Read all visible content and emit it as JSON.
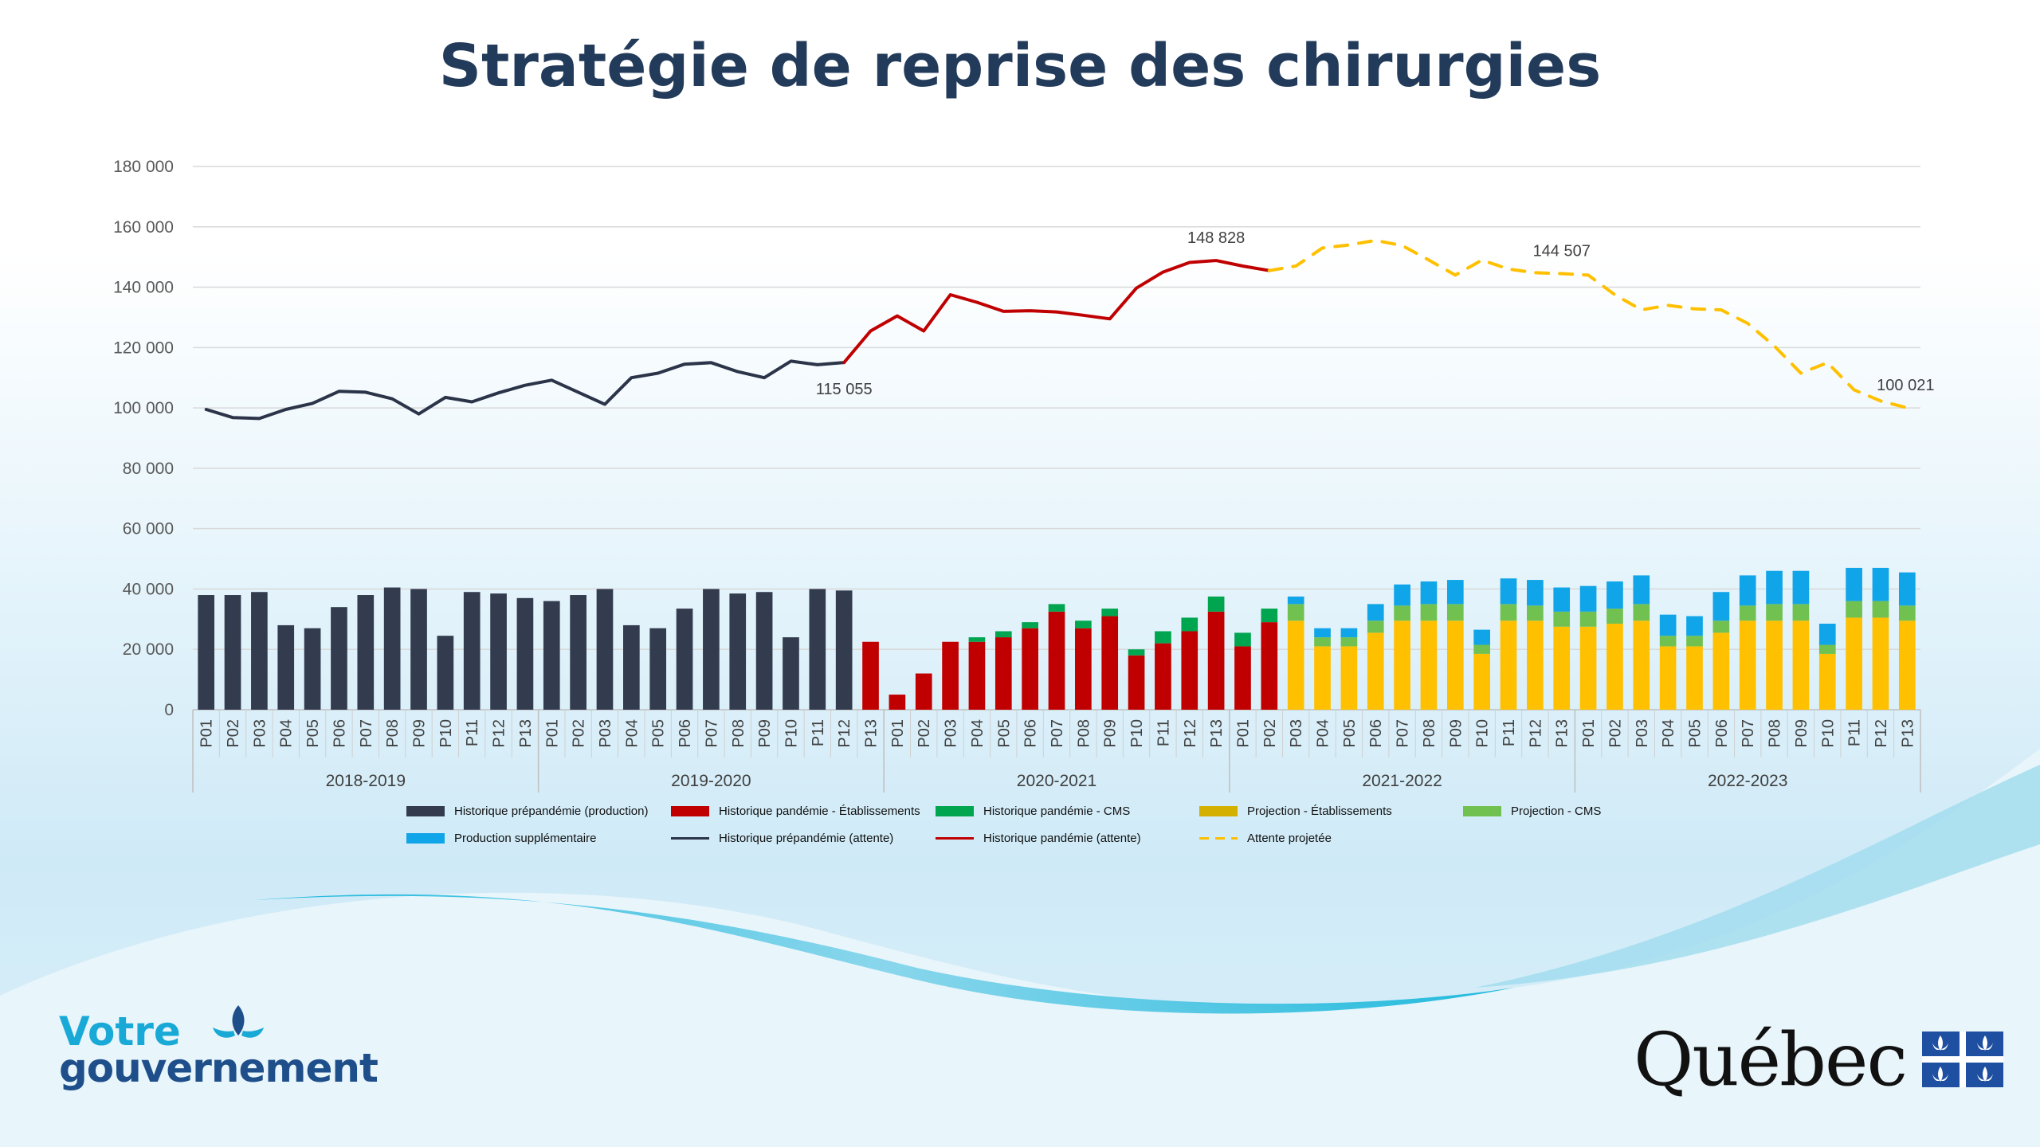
{
  "title": "Stratégie de reprise des chirurgies",
  "brand": {
    "left_line1": "Votre",
    "left_line2": "gouvernement",
    "right_word": "Québec"
  },
  "colors": {
    "pre_bar": "#323c4e",
    "pand_bar": "#c00000",
    "pand_cms": "#00a550",
    "proj_etab": "#ffc000",
    "proj_cms": "#70c150",
    "prod_supp": "#10a4e8",
    "pre_line": "#2b3448",
    "pand_line": "#c00000",
    "proj_line": "#ffc000",
    "title": "#233b5a"
  },
  "chart_data": {
    "type": "bar",
    "y_ticks": [
      "180 000",
      "160 000",
      "140 000",
      "120 000",
      "100 000",
      "80 000",
      "60 000",
      "40 000",
      "20 000",
      "0"
    ],
    "ylim": [
      0,
      180000
    ],
    "periods": [
      "P01",
      "P02",
      "P03",
      "P04",
      "P05",
      "P06",
      "P07",
      "P08",
      "P09",
      "P10",
      "P11",
      "P12",
      "P13"
    ],
    "years": [
      "2018-2019",
      "2019-2020",
      "2020-2021",
      "2021-2022",
      "2022-2023"
    ],
    "legend": [
      "Historique prépandémie (production)",
      "Historique pandémie - Établissements",
      "Historique pandémie - CMS",
      "Projection - Établissements",
      "Projection - CMS",
      "Production supplémentaire",
      "Historique prépandémie (attente)",
      "Historique pandémie (attente)",
      "Attente projetée"
    ],
    "series": [
      {
        "name": "Historique prépandémie (production)",
        "values": [
          38000,
          38000,
          39000,
          28000,
          27000,
          34000,
          38000,
          40500,
          40000,
          24500,
          39000,
          38500,
          37000,
          36000,
          38000,
          40000,
          28000,
          27000,
          33500,
          40000,
          38500,
          39000,
          24000,
          40000,
          39500,
          null,
          null,
          null,
          null,
          null,
          null,
          null,
          null,
          null,
          null,
          null,
          null,
          null,
          null,
          null,
          null,
          null,
          null,
          null,
          null,
          null,
          null,
          null,
          null,
          null,
          null,
          null,
          null,
          null,
          null,
          null,
          null,
          null,
          null,
          null,
          null,
          null,
          null,
          null,
          null
        ]
      },
      {
        "name": "Historique pandémie - Établissements",
        "values": [
          null,
          null,
          null,
          null,
          null,
          null,
          null,
          null,
          null,
          null,
          null,
          null,
          null,
          null,
          null,
          null,
          null,
          null,
          null,
          null,
          null,
          null,
          null,
          null,
          null,
          22500,
          5000,
          12000,
          22500,
          22500,
          24000,
          27000,
          32500,
          27000,
          31000,
          18000,
          22000,
          26000,
          32500,
          21000,
          29000,
          null,
          null,
          null,
          null,
          null,
          null,
          null,
          null,
          null,
          null,
          null,
          null,
          null,
          null,
          null,
          null,
          null,
          null,
          null,
          null,
          null,
          null,
          null,
          null
        ]
      },
      {
        "name": "Historique pandémie - CMS",
        "values": [
          null,
          null,
          null,
          null,
          null,
          null,
          null,
          null,
          null,
          null,
          null,
          null,
          null,
          null,
          null,
          null,
          null,
          null,
          null,
          null,
          null,
          null,
          null,
          null,
          null,
          0,
          0,
          0,
          0,
          1500,
          2000,
          2000,
          2500,
          2500,
          2500,
          2000,
          4000,
          4500,
          5000,
          4500,
          4500,
          null,
          null,
          null,
          null,
          null,
          null,
          null,
          null,
          null,
          null,
          null,
          null,
          null,
          null,
          null,
          null,
          null,
          null,
          null,
          null,
          null,
          null,
          null,
          null
        ]
      },
      {
        "name": "Projection - Établissements",
        "values": [
          null,
          null,
          null,
          null,
          null,
          null,
          null,
          null,
          null,
          null,
          null,
          null,
          null,
          null,
          null,
          null,
          null,
          null,
          null,
          null,
          null,
          null,
          null,
          null,
          null,
          null,
          null,
          null,
          null,
          null,
          null,
          null,
          null,
          null,
          null,
          null,
          null,
          null,
          null,
          null,
          null,
          29500,
          21000,
          21000,
          25500,
          29500,
          29500,
          29500,
          18500,
          29500,
          29500,
          27500,
          27500,
          28500,
          29500,
          21000,
          21000,
          25500,
          29500,
          29500,
          29500,
          18500,
          30500,
          30500,
          29500
        ]
      },
      {
        "name": "Projection - CMS",
        "values": [
          null,
          null,
          null,
          null,
          null,
          null,
          null,
          null,
          null,
          null,
          null,
          null,
          null,
          null,
          null,
          null,
          null,
          null,
          null,
          null,
          null,
          null,
          null,
          null,
          null,
          null,
          null,
          null,
          null,
          null,
          null,
          null,
          null,
          null,
          null,
          null,
          null,
          null,
          null,
          null,
          null,
          5500,
          3000,
          3000,
          4000,
          5000,
          5500,
          5500,
          3000,
          5500,
          5000,
          5000,
          5000,
          5000,
          5500,
          3500,
          3500,
          4000,
          5000,
          5500,
          5500,
          3000,
          5500,
          5500,
          5000
        ]
      },
      {
        "name": "Production supplémentaire",
        "values": [
          null,
          null,
          null,
          null,
          null,
          null,
          null,
          null,
          null,
          null,
          null,
          null,
          null,
          null,
          null,
          null,
          null,
          null,
          null,
          null,
          null,
          null,
          null,
          null,
          null,
          null,
          null,
          null,
          null,
          null,
          null,
          null,
          null,
          null,
          null,
          null,
          null,
          null,
          null,
          null,
          null,
          2500,
          3000,
          3000,
          5500,
          7000,
          7500,
          8000,
          5000,
          8500,
          8500,
          8000,
          8500,
          9000,
          9500,
          7000,
          6500,
          9500,
          10000,
          11000,
          11000,
          7000,
          11000,
          11000,
          11000
        ]
      },
      {
        "name": "Historique prépandémie (attente)",
        "values": [
          99500,
          96800,
          96500,
          99500,
          101500,
          105500,
          105200,
          103000,
          98000,
          103500,
          102000,
          105000,
          107500,
          109200,
          105200,
          101200,
          110000,
          111500,
          114500,
          115000,
          112000,
          110000,
          115500,
          114300,
          115055,
          null,
          null,
          null,
          null,
          null,
          null,
          null,
          null,
          null,
          null,
          null,
          null,
          null,
          null,
          null,
          null,
          null,
          null,
          null,
          null,
          null,
          null,
          null,
          null,
          null,
          null,
          null,
          null,
          null,
          null,
          null,
          null,
          null,
          null,
          null,
          null,
          null,
          null,
          null,
          null
        ]
      },
      {
        "name": "Historique pandémie (attente)",
        "values": [
          null,
          null,
          null,
          null,
          null,
          null,
          null,
          null,
          null,
          null,
          null,
          null,
          null,
          null,
          null,
          null,
          null,
          null,
          null,
          null,
          null,
          null,
          null,
          null,
          115055,
          125500,
          130500,
          125500,
          137500,
          135000,
          132000,
          132200,
          131800,
          130700,
          129500,
          139700,
          145000,
          148200,
          148828,
          147000,
          145500,
          null,
          null,
          null,
          null,
          null,
          null,
          null,
          null,
          null,
          null,
          null,
          null,
          null,
          null,
          null,
          null,
          null,
          null,
          null,
          null,
          null,
          null,
          null,
          null
        ]
      },
      {
        "name": "Attente projetée",
        "values": [
          null,
          null,
          null,
          null,
          null,
          null,
          null,
          null,
          null,
          null,
          null,
          null,
          null,
          null,
          null,
          null,
          null,
          null,
          null,
          null,
          null,
          null,
          null,
          null,
          null,
          null,
          null,
          null,
          null,
          null,
          null,
          null,
          null,
          null,
          null,
          null,
          null,
          null,
          null,
          null,
          145500,
          147000,
          153000,
          154000,
          155500,
          153800,
          149000,
          144000,
          149000,
          146000,
          144800,
          144507,
          144000,
          137500,
          132500,
          134000,
          132800,
          132500,
          128000,
          120500,
          111500,
          115000,
          106000,
          102300,
          100021
        ]
      }
    ],
    "annotations": [
      {
        "text": "115 055",
        "index": 24,
        "value": 115055,
        "pos": "below"
      },
      {
        "text": "148 828",
        "index": 38,
        "value": 148828,
        "pos": "above"
      },
      {
        "text": "144 507",
        "index": 51,
        "value": 144507,
        "pos": "above"
      },
      {
        "text": "100 021",
        "index": 64,
        "value": 100021,
        "pos": "above"
      }
    ]
  }
}
